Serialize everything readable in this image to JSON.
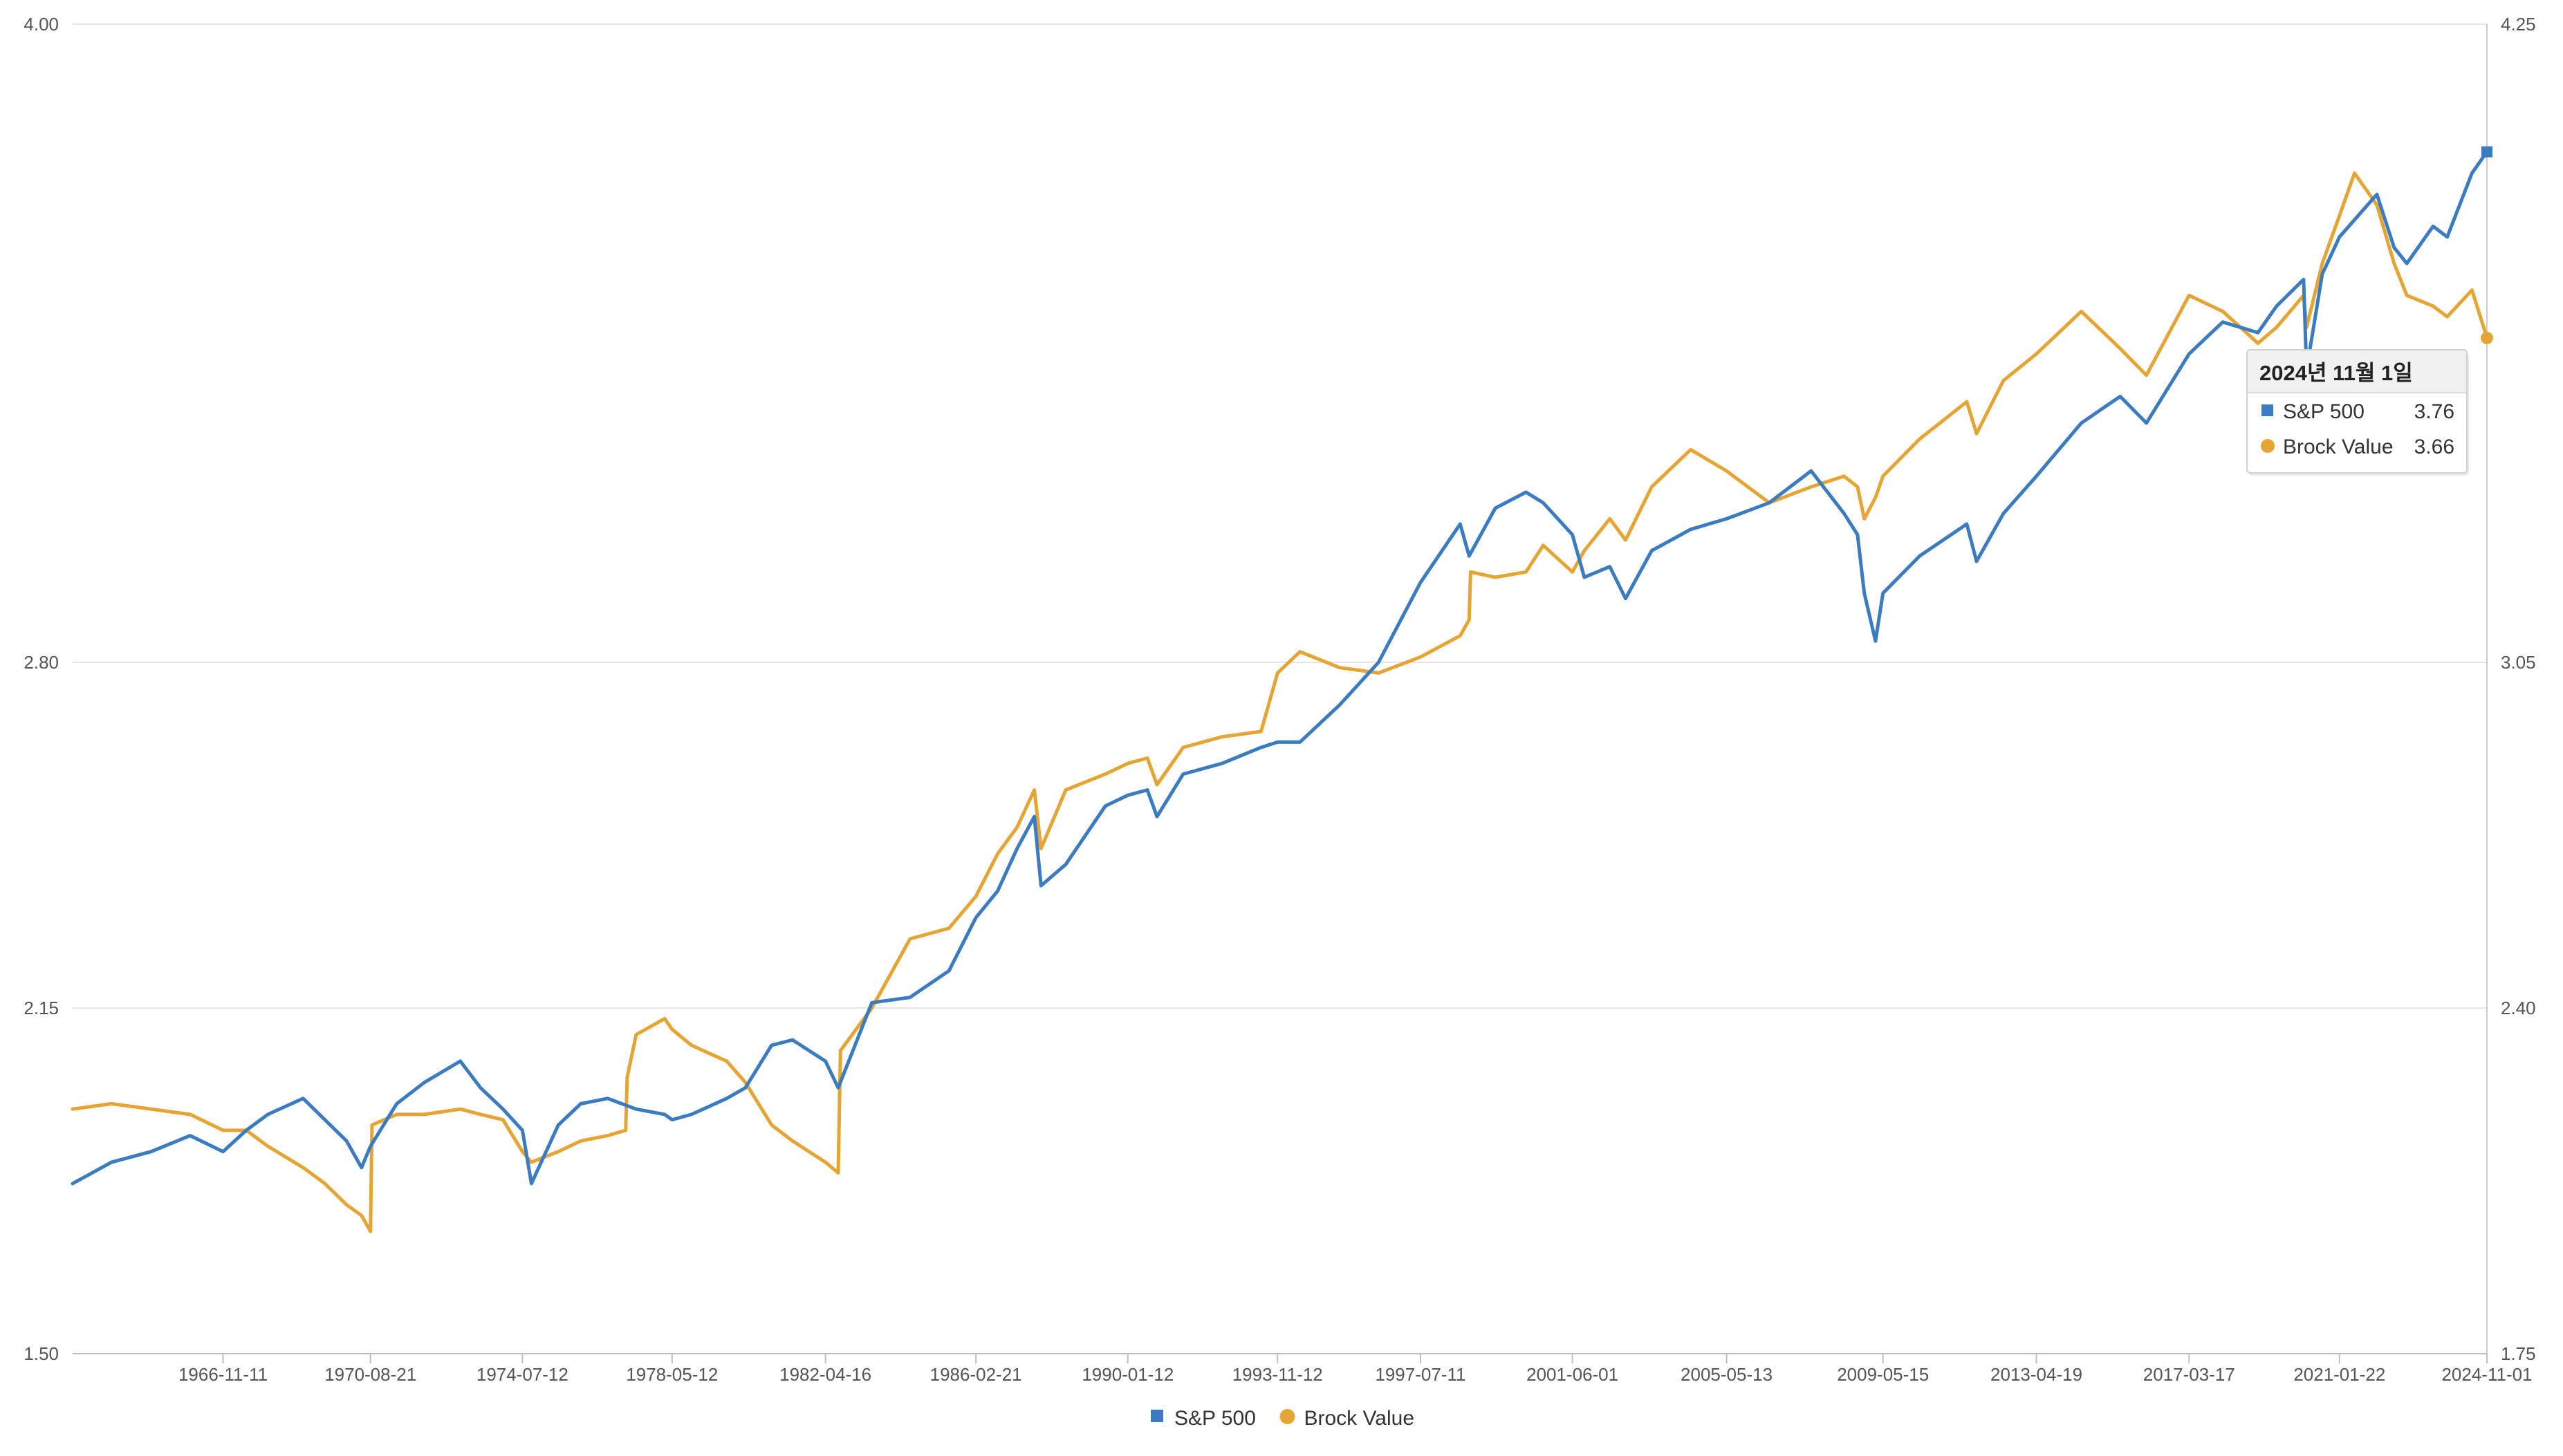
{
  "chart_data": {
    "type": "line",
    "title": "",
    "xlabel": "",
    "ylabel_left": "",
    "ylabel_right": "",
    "x_ticks": [
      "1966-11-11",
      "1970-08-21",
      "1974-07-12",
      "1978-05-12",
      "1982-04-16",
      "1986-02-21",
      "1990-01-12",
      "1993-11-12",
      "1997-07-11",
      "2001-06-01",
      "2005-05-13",
      "2009-05-15",
      "2013-04-19",
      "2017-03-17",
      "2021-01-22",
      "2024-11-01"
    ],
    "x_range": [
      "1963-01-04",
      "2024-11-01"
    ],
    "y_left": {
      "min": 1.5,
      "max": 4.0,
      "ticks": [
        "1.50",
        "2.15",
        "2.80",
        "4.00"
      ]
    },
    "y_right": {
      "min": 1.75,
      "max": 4.25,
      "ticks": [
        "1.75",
        "2.40",
        "3.05",
        "4.25"
      ]
    },
    "grid": true,
    "legend": "bottom-center",
    "series": [
      {
        "name": "S&P 500",
        "axis": "left",
        "color": "#3b7bbf",
        "marker": "square",
        "x": [
          "1963-01-04",
          "1964-01-03",
          "1965-01-08",
          "1966-01-07",
          "1966-11-11",
          "1967-06-16",
          "1968-01-05",
          "1968-11-29",
          "1969-06-20",
          "1970-01-09",
          "1970-05-29",
          "1970-08-21",
          "1971-04-23",
          "1972-01-07",
          "1972-12-08",
          "1973-06-15",
          "1974-01-11",
          "1974-07-12",
          "1974-10-04",
          "1975-06-13",
          "1976-01-09",
          "1976-09-17",
          "1977-06-10",
          "1978-03-03",
          "1978-05-12",
          "1978-11-10",
          "1979-10-05",
          "1980-03-28",
          "1980-11-28",
          "1981-06-12",
          "1982-04-16",
          "1982-08-13",
          "1983-06-24",
          "1984-06-15",
          "1985-06-14",
          "1986-02-21",
          "1986-09-12",
          "1987-03-13",
          "1987-08-21",
          "1987-10-23",
          "1988-06-10",
          "1989-06-16",
          "1990-01-12",
          "1990-07-13",
          "1990-10-12",
          "1991-06-14",
          "1992-06-12",
          "1993-06-11",
          "1993-11-12",
          "1994-06-10",
          "1995-06-16",
          "1996-06-14",
          "1997-07-11",
          "1998-07-17",
          "1998-10-09",
          "1999-06-11",
          "2000-03-24",
          "2000-09-01",
          "2001-06-01",
          "2001-09-21",
          "2002-05-17",
          "2002-10-11",
          "2003-06-13",
          "2004-06-11",
          "2005-05-13",
          "2006-06-16",
          "2007-07-13",
          "2008-05-16",
          "2008-09-19",
          "2008-11-21",
          "2009-03-06",
          "2009-05-15",
          "2010-04-23",
          "2011-07-08",
          "2011-10-07",
          "2012-06-15",
          "2013-04-19",
          "2014-06-13",
          "2015-06-12",
          "2016-02-12",
          "2017-03-17",
          "2018-01-26",
          "2018-12-21",
          "2019-06-14",
          "2020-02-21",
          "2020-03-20",
          "2020-08-14",
          "2021-01-22",
          "2022-01-07",
          "2022-06-17",
          "2022-10-14",
          "2023-06-16",
          "2023-10-27",
          "2024-06-14",
          "2024-11-01"
        ],
        "y": [
          1.82,
          1.86,
          1.88,
          1.91,
          1.88,
          1.92,
          1.95,
          1.98,
          1.94,
          1.9,
          1.85,
          1.89,
          1.97,
          2.01,
          2.05,
          2.0,
          1.96,
          1.92,
          1.82,
          1.93,
          1.97,
          1.98,
          1.96,
          1.95,
          1.94,
          1.95,
          1.98,
          2.0,
          2.08,
          2.09,
          2.05,
          2.0,
          2.16,
          2.17,
          2.22,
          2.32,
          2.37,
          2.45,
          2.51,
          2.38,
          2.42,
          2.53,
          2.55,
          2.56,
          2.51,
          2.59,
          2.61,
          2.64,
          2.65,
          2.65,
          2.72,
          2.8,
          2.95,
          3.06,
          3.0,
          3.09,
          3.12,
          3.1,
          3.04,
          2.96,
          2.98,
          2.92,
          3.01,
          3.05,
          3.07,
          3.1,
          3.16,
          3.08,
          3.04,
          2.93,
          2.84,
          2.93,
          3.0,
          3.06,
          2.99,
          3.08,
          3.15,
          3.25,
          3.3,
          3.25,
          3.38,
          3.44,
          3.42,
          3.47,
          3.52,
          3.35,
          3.53,
          3.6,
          3.68,
          3.58,
          3.55,
          3.62,
          3.6,
          3.72,
          3.76
        ]
      },
      {
        "name": "Brock Value",
        "axis": "right",
        "color": "#e5a534",
        "marker": "circle",
        "x": [
          "1963-01-04",
          "1964-01-03",
          "1965-01-08",
          "1966-01-07",
          "1966-11-11",
          "1967-06-16",
          "1968-01-05",
          "1968-11-29",
          "1969-06-20",
          "1970-01-09",
          "1970-05-29",
          "1970-08-21",
          "1970-09-04",
          "1971-04-23",
          "1972-01-07",
          "1972-12-08",
          "1973-06-15",
          "1974-01-11",
          "1974-07-12",
          "1974-10-04",
          "1975-06-13",
          "1976-01-09",
          "1976-09-17",
          "1977-03-04",
          "1977-03-18",
          "1977-06-10",
          "1978-03-03",
          "1978-05-12",
          "1978-11-10",
          "1979-06-15",
          "1979-10-05",
          "1980-03-28",
          "1980-11-28",
          "1981-06-12",
          "1982-04-16",
          "1982-08-13",
          "1982-09-03",
          "1983-06-24",
          "1984-06-15",
          "1985-06-14",
          "1986-02-21",
          "1986-09-12",
          "1987-03-13",
          "1987-08-21",
          "1987-10-23",
          "1988-06-10",
          "1989-06-16",
          "1990-01-12",
          "1990-07-13",
          "1990-10-12",
          "1991-06-14",
          "1992-06-12",
          "1993-06-11",
          "1993-11-12",
          "1994-06-10",
          "1995-06-16",
          "1996-06-14",
          "1997-07-11",
          "1998-07-17",
          "1998-10-09",
          "1998-10-23",
          "1999-06-11",
          "2000-03-24",
          "2000-09-01",
          "2001-06-01",
          "2001-09-21",
          "2002-05-17",
          "2002-10-11",
          "2003-06-13",
          "2004-06-11",
          "2005-05-13",
          "2006-06-16",
          "2007-07-13",
          "2008-05-16",
          "2008-09-19",
          "2008-11-21",
          "2009-03-06",
          "2009-05-15",
          "2010-04-23",
          "2011-07-08",
          "2011-10-07",
          "2012-06-15",
          "2013-04-19",
          "2014-06-13",
          "2015-06-12",
          "2016-02-12",
          "2017-03-17",
          "2018-01-26",
          "2018-12-21",
          "2019-06-14",
          "2020-02-21",
          "2020-03-20",
          "2020-08-14",
          "2021-01-22",
          "2021-06-11",
          "2022-01-07",
          "2022-06-17",
          "2022-10-14",
          "2023-06-16",
          "2023-10-27",
          "2024-06-14",
          "2024-11-01"
        ],
        "y": [
          2.21,
          2.22,
          2.21,
          2.2,
          2.17,
          2.17,
          2.14,
          2.1,
          2.07,
          2.03,
          2.01,
          1.98,
          2.18,
          2.2,
          2.2,
          2.21,
          2.2,
          2.19,
          2.13,
          2.11,
          2.13,
          2.15,
          2.16,
          2.17,
          2.27,
          2.35,
          2.38,
          2.36,
          2.33,
          2.31,
          2.3,
          2.26,
          2.18,
          2.15,
          2.11,
          2.09,
          2.32,
          2.4,
          2.53,
          2.55,
          2.61,
          2.69,
          2.74,
          2.81,
          2.7,
          2.81,
          2.84,
          2.86,
          2.87,
          2.82,
          2.89,
          2.91,
          2.92,
          3.03,
          3.07,
          3.04,
          3.03,
          3.06,
          3.1,
          3.13,
          3.22,
          3.21,
          3.22,
          3.27,
          3.22,
          3.26,
          3.32,
          3.28,
          3.38,
          3.45,
          3.41,
          3.35,
          3.38,
          3.4,
          3.38,
          3.32,
          3.36,
          3.4,
          3.47,
          3.54,
          3.48,
          3.58,
          3.63,
          3.71,
          3.64,
          3.59,
          3.74,
          3.71,
          3.65,
          3.68,
          3.74,
          3.68,
          3.8,
          3.89,
          3.97,
          3.91,
          3.8,
          3.74,
          3.72,
          3.7,
          3.75,
          3.66
        ]
      }
    ],
    "tooltip": {
      "title": "2024년 11월 1일",
      "rows": [
        {
          "name": "S&P 500",
          "value": "3.76"
        },
        {
          "name": "Brock Value",
          "value": "3.66"
        }
      ]
    }
  }
}
